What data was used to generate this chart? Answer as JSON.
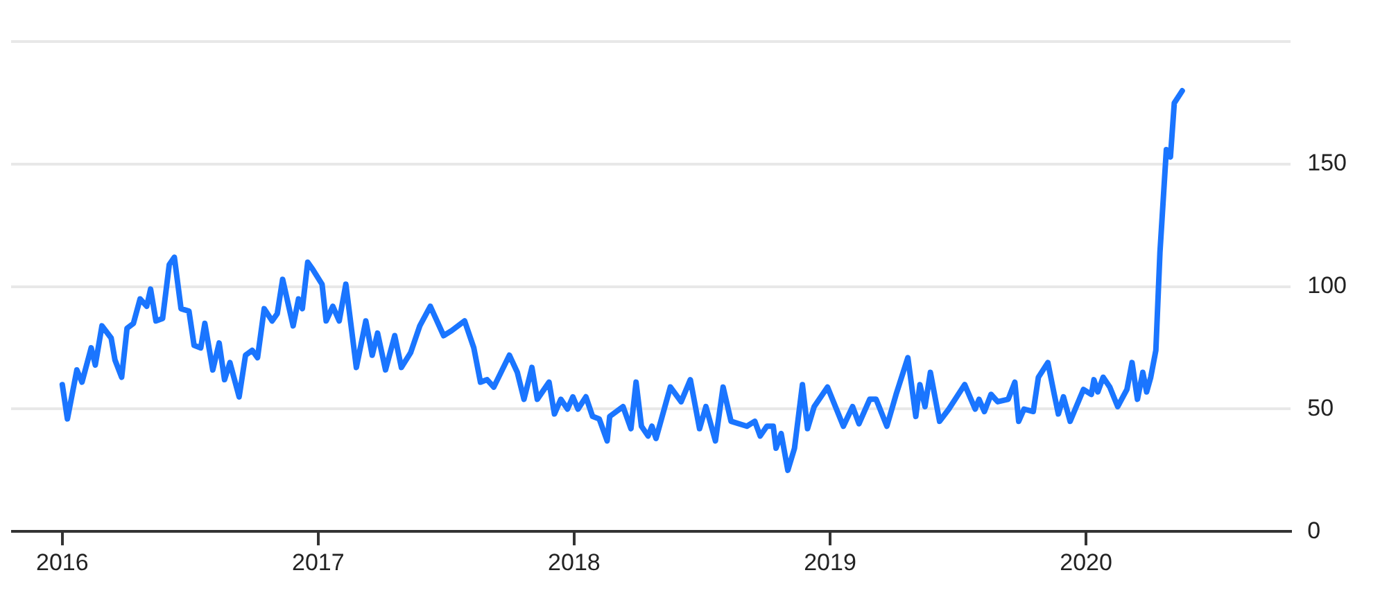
{
  "chart_data": {
    "type": "line",
    "xlim": [
      2015.8,
      2020.8
    ],
    "xticks": [
      2016,
      2017,
      2018,
      2019,
      2020
    ],
    "ylim": [
      0,
      200
    ],
    "yticks": [
      0,
      50,
      100,
      150,
      {
        "value": 200,
        "label": null
      }
    ],
    "grid": "y",
    "legend": false,
    "marker": "none",
    "line_style": "solid",
    "series": [
      {
        "color": "#1a75ff",
        "x": [
          2016,
          2016.02,
          2016.057,
          2016.077,
          2016.113,
          2016.129,
          2016.155,
          2016.191,
          2016.206,
          2016.232,
          2016.253,
          2016.278,
          2016.304,
          2016.33,
          2016.345,
          2016.366,
          2016.392,
          2016.418,
          2016.438,
          2016.464,
          2016.495,
          2016.515,
          2016.541,
          2016.557,
          2016.588,
          2016.613,
          2016.634,
          2016.655,
          2016.691,
          2016.716,
          2016.742,
          2016.763,
          2016.789,
          2016.82,
          2016.84,
          2016.861,
          2016.902,
          2016.923,
          2016.938,
          2016.959,
          2016.979,
          2017.015,
          2017.031,
          2017.057,
          2017.082,
          2017.108,
          2017.149,
          2017.186,
          2017.211,
          2017.232,
          2017.263,
          2017.299,
          2017.325,
          2017.361,
          2017.397,
          2017.438,
          2017.49,
          2017.521,
          2017.572,
          2017.608,
          2017.634,
          2017.66,
          2017.686,
          2017.747,
          2017.778,
          2017.804,
          2017.835,
          2017.856,
          2017.902,
          2017.923,
          2017.948,
          2017.974,
          2017.995,
          2018.015,
          2018.046,
          2018.072,
          2018.098,
          2018.129,
          2018.139,
          2018.191,
          2018.222,
          2018.242,
          2018.263,
          2018.289,
          2018.304,
          2018.32,
          2018.376,
          2018.418,
          2018.454,
          2018.49,
          2018.515,
          2018.552,
          2018.582,
          2018.613,
          2018.675,
          2018.706,
          2018.727,
          2018.753,
          2018.778,
          2018.789,
          2018.809,
          2018.835,
          2018.861,
          2018.892,
          2018.912,
          2018.938,
          2018.99,
          2019.052,
          2019.088,
          2019.113,
          2019.155,
          2019.18,
          2019.222,
          2019.258,
          2019.304,
          2019.335,
          2019.351,
          2019.371,
          2019.392,
          2019.428,
          2019.464,
          2019.526,
          2019.567,
          2019.582,
          2019.603,
          2019.629,
          2019.655,
          2019.696,
          2019.722,
          2019.737,
          2019.758,
          2019.794,
          2019.814,
          2019.851,
          2019.876,
          2019.892,
          2019.912,
          2019.938,
          2019.99,
          2020.021,
          2020.031,
          2020.046,
          2020.067,
          2020.093,
          2020.124,
          2020.16,
          2020.18,
          2020.201,
          2020.222,
          2020.237,
          2020.253,
          2020.273,
          2020.289,
          2020.314,
          2020.33,
          2020.345,
          2020.376
        ],
        "values": [
          60,
          46,
          66,
          61,
          75,
          68,
          84,
          79,
          70,
          63,
          83,
          85,
          95,
          92,
          99,
          86,
          87,
          109,
          112,
          91,
          90,
          76,
          75,
          85,
          66,
          77,
          62,
          69,
          55,
          72,
          74,
          71,
          91,
          86,
          89,
          103,
          84,
          95,
          91,
          110,
          107,
          101,
          86,
          92,
          86,
          101,
          67,
          86,
          72,
          81,
          66,
          80,
          67,
          73,
          84,
          92,
          80,
          82,
          86,
          75,
          61,
          62,
          59,
          72,
          65,
          54,
          67,
          54,
          61,
          48,
          54,
          50,
          55,
          50,
          55,
          47,
          46,
          37,
          47,
          51,
          42,
          61,
          43,
          39,
          43,
          38,
          59,
          53,
          62,
          42,
          51,
          37,
          59,
          45,
          43,
          45,
          39,
          43,
          43,
          34,
          40,
          25,
          34,
          60,
          42,
          51,
          59,
          43,
          51,
          44,
          54,
          54,
          43,
          56,
          71,
          47,
          60,
          51,
          65,
          45,
          50,
          60,
          50,
          54,
          49,
          56,
          53,
          54,
          61,
          45,
          50,
          49,
          63,
          69,
          56,
          48,
          55,
          45,
          58,
          56,
          62,
          57,
          63,
          59,
          51,
          58,
          69,
          54,
          65,
          57,
          63,
          74,
          114,
          156,
          153,
          175,
          180
        ]
      }
    ]
  }
}
